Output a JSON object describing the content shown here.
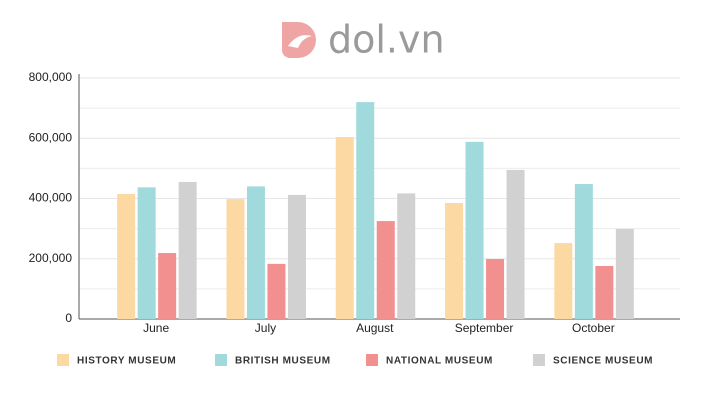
{
  "chart_data": {
    "type": "bar",
    "watermark": "dol.vn",
    "categories": [
      "June",
      "July",
      "August",
      "September",
      "October"
    ],
    "series": [
      {
        "name": "HISTORY MUSEUM",
        "color": "#fcd9a2",
        "values": [
          415000,
          398000,
          604000,
          385000,
          252000
        ]
      },
      {
        "name": "BRITISH MUSEUM",
        "color": "#a1dadc",
        "values": [
          437000,
          440000,
          720000,
          588000,
          448000
        ]
      },
      {
        "name": "NATIONAL MUSEUM",
        "color": "#f28f8f",
        "values": [
          219000,
          183000,
          325000,
          199000,
          176000
        ]
      },
      {
        "name": "SCIENCE MUSEUM",
        "color": "#d1d1d1",
        "values": [
          455000,
          412000,
          417000,
          495000,
          299000
        ]
      }
    ],
    "ylim": [
      0,
      800000
    ],
    "yticks": [
      0,
      {
        "value": 200000,
        "label": "200,000"
      },
      {
        "value": 400000,
        "label": "400,000"
      },
      {
        "value": 600000,
        "label": "600,000"
      },
      {
        "value": 800000,
        "label": "800,000"
      }
    ],
    "minor_yticks": [
      100000,
      300000,
      500000,
      700000
    ],
    "grid": true
  }
}
